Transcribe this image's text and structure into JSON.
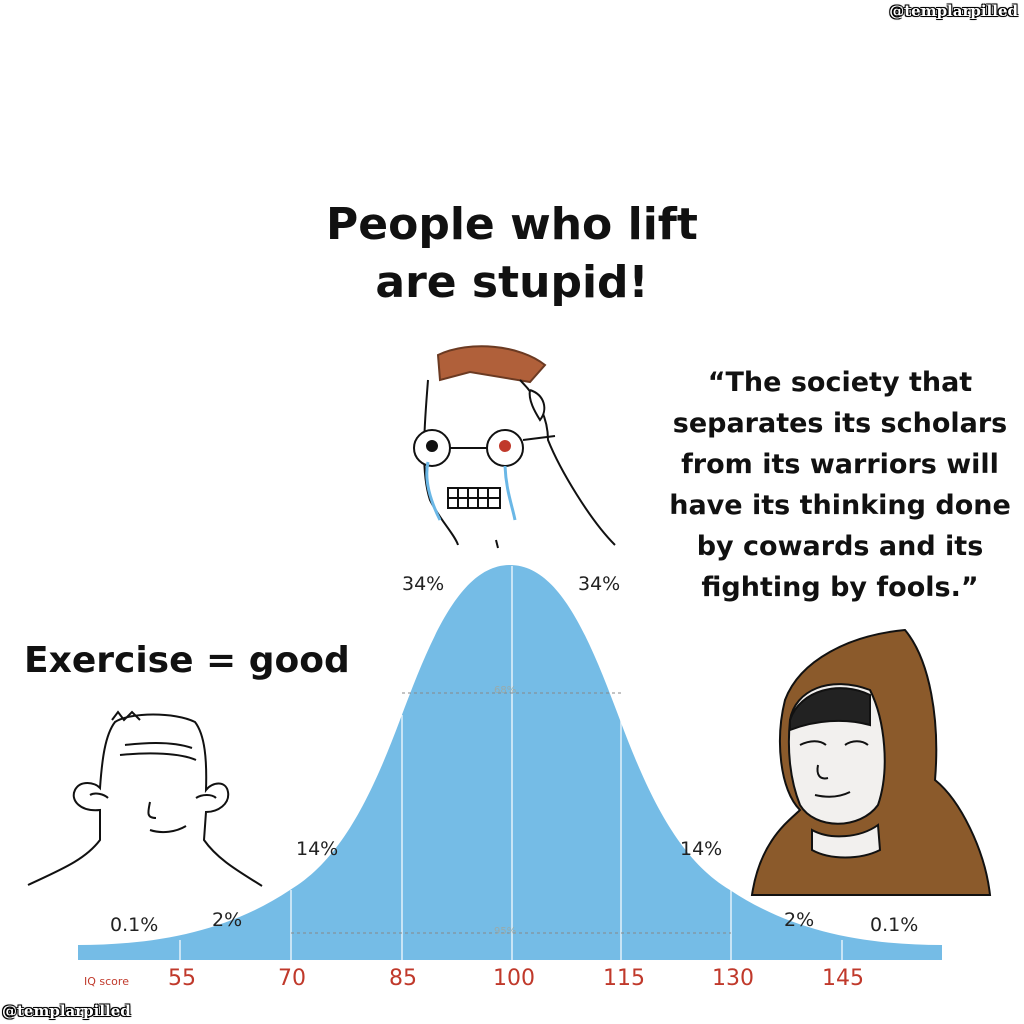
{
  "watermark": "@templarpilled",
  "title_lines": [
    "People who lift",
    "are stupid!"
  ],
  "quote_lines": [
    "“The society that",
    "separates its scholars",
    "from its warriors will",
    "have its thinking done",
    "by cowards and its",
    "fighting by fools.”"
  ],
  "left_caption": "Exercise = good",
  "percent_labels": {
    "left_tail": "0.1%",
    "left_2": "2%",
    "left_14": "14%",
    "left_34": "34%",
    "right_34": "34%",
    "right_14": "14%",
    "right_2": "2%",
    "right_tail": "0.1%",
    "band_68": "68%",
    "band_95": "95%"
  },
  "axis": {
    "label": "IQ score",
    "ticks": [
      "55",
      "70",
      "85",
      "100",
      "115",
      "130",
      "145"
    ]
  },
  "colors": {
    "curve": "#75bce6",
    "axis_text": "#c0392b",
    "hood": "#8b5a2b",
    "hair": "#b0603a"
  }
}
